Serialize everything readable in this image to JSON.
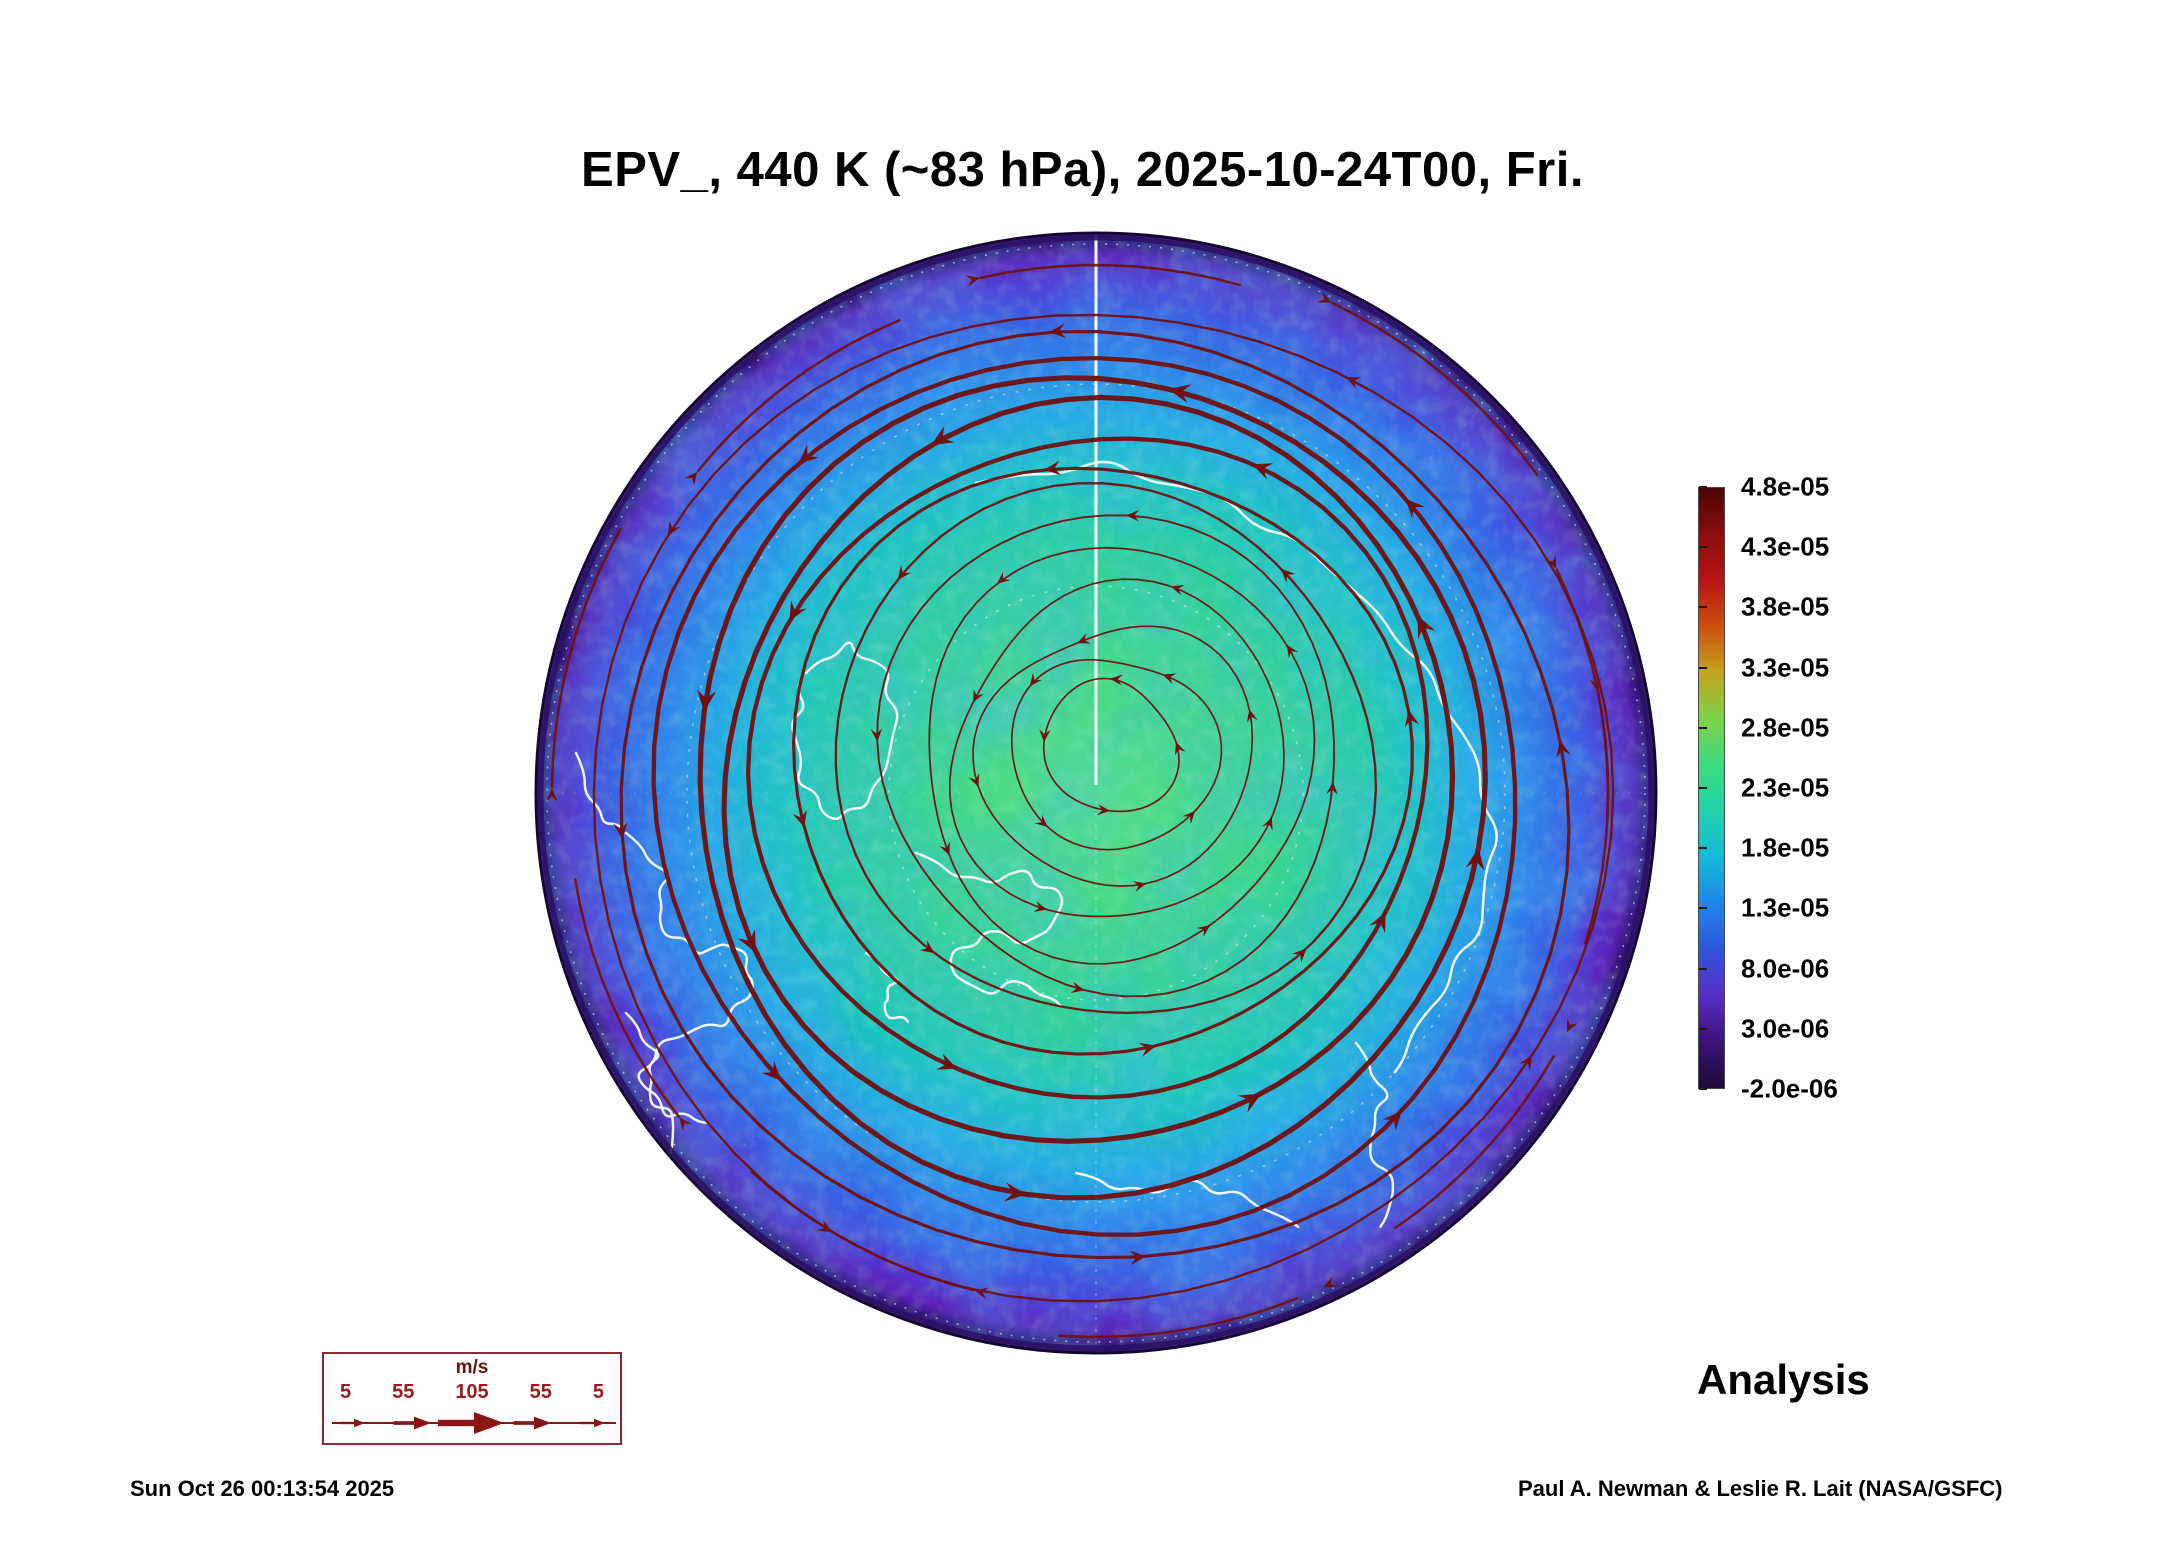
{
  "title": "EPV_, 440 K (~83 hPa), 2025-10-24T00, Fri.",
  "colorbar": {
    "ticks": [
      "4.8e-05",
      "4.3e-05",
      "3.8e-05",
      "3.3e-05",
      "2.8e-05",
      "2.3e-05",
      "1.8e-05",
      "1.3e-05",
      "8.0e-06",
      "3.0e-06",
      "-2.0e-06"
    ],
    "colors_top_to_bottom": [
      "#4a0505",
      "#8c0d0d",
      "#b81414",
      "#cc4f10",
      "#c2a41e",
      "#7ed24a",
      "#3bdc7e",
      "#22d2a8",
      "#12bcd8",
      "#1f86e8",
      "#2f55dc",
      "#5a2ec8",
      "#3a1378",
      "#1c0a38"
    ]
  },
  "wind_legend": {
    "units": "m/s",
    "speeds": [
      "5",
      "55",
      "105",
      "55",
      "5"
    ],
    "arrow_color": "#8b1515"
  },
  "footer": {
    "timestamp": "Sun Oct 26 00:13:54 2025",
    "credit": "Paul A. Newman & Leslie R. Lait (NASA/GSFC)",
    "analysis_label": "Analysis"
  },
  "map_colors": {
    "center_green": "#58e27c",
    "mid_teal": "#1cc4c0",
    "outer_blue": "#2f7ce8",
    "rim_purple": "#5c22b8",
    "streamline_red": "#701010",
    "coastline_white": "#ffffff"
  },
  "chart_data": {
    "type": "heatmap",
    "title": "EPV_, 440 K (~83 hPa), 2025-10-24T00, Fri.",
    "field": "EPV_",
    "level": "440 K (~83 hPa)",
    "valid_time": "2025-10-24T00",
    "weekday": "Fri.",
    "projection": "north polar (pole-centered circular map)",
    "colorbar_ticks": [
      4.8e-05,
      4.3e-05,
      3.8e-05,
      3.3e-05,
      2.8e-05,
      2.3e-05,
      1.8e-05,
      1.3e-05,
      8e-06,
      3e-06,
      -2e-06
    ],
    "colorbar_range": [
      -2e-06,
      4.8e-05
    ],
    "colorbar_orientation": "vertical",
    "overlays": [
      "wind streamlines (dark red, counterclockwise polar vortex)",
      "white coastlines",
      "dashed white graticule"
    ],
    "wind_legend_speeds_mps": [
      5,
      55,
      105,
      55,
      5
    ],
    "annotation": "Analysis",
    "generated_stamp": "Sun Oct 26 00:13:54 2025",
    "credit": "Paul A. Newman & Leslie R. Lait (NASA/GSFC)"
  }
}
